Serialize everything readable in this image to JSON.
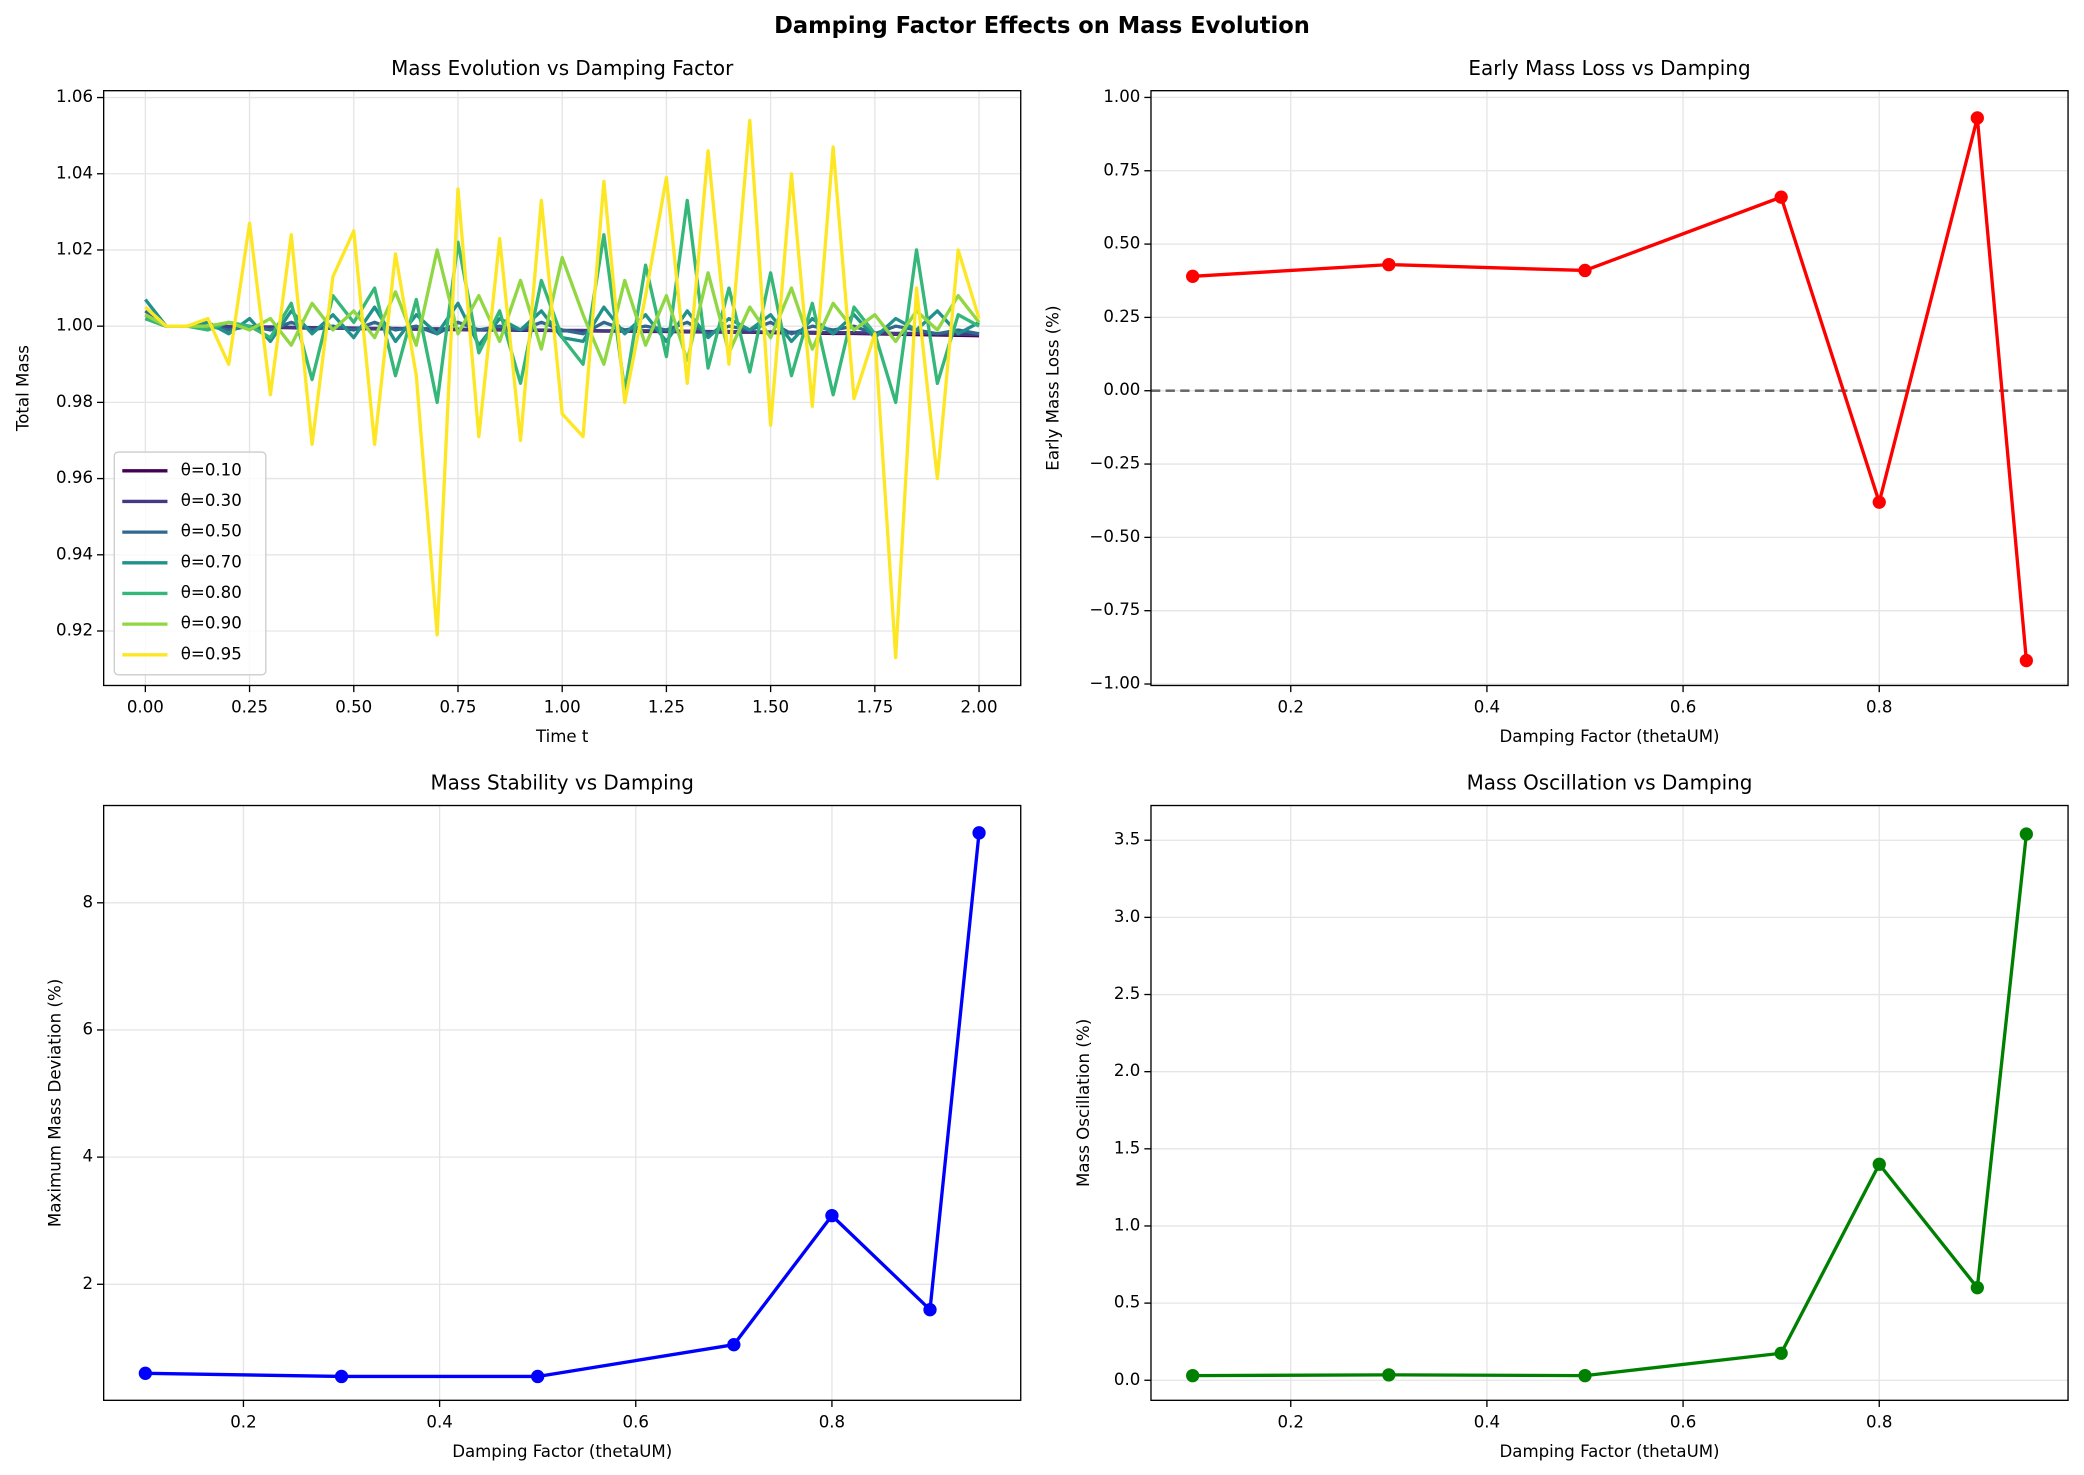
{
  "title": "Damping Factor Effects on Mass Evolution",
  "chart_data": [
    {
      "type": "line",
      "title": "Mass Evolution vs Damping Factor",
      "xlabel": "Time t",
      "ylabel": "Total Mass",
      "grid": true,
      "legend": "lower left",
      "x": [
        0,
        0.05,
        0.1,
        0.15,
        0.2,
        0.25,
        0.3,
        0.35,
        0.4,
        0.45,
        0.5,
        0.55,
        0.6,
        0.65,
        0.7,
        0.75,
        0.8,
        0.85,
        0.9,
        0.95,
        1.0,
        1.05,
        1.1,
        1.15,
        1.2,
        1.25,
        1.3,
        1.35,
        1.4,
        1.45,
        1.5,
        1.55,
        1.6,
        1.65,
        1.7,
        1.75,
        1.8,
        1.85,
        1.9,
        1.95,
        2.0
      ],
      "xlim": [
        -0.1,
        2.1
      ],
      "xticks": [
        {
          "value": 0,
          "label": "0.00"
        },
        {
          "value": 0.25,
          "label": "0.25"
        },
        {
          "value": 0.5,
          "label": "0.50"
        },
        {
          "value": 0.75,
          "label": "0.75"
        },
        {
          "value": 1,
          "label": "1.00"
        },
        {
          "value": 1.25,
          "label": "1.25"
        },
        {
          "value": 1.5,
          "label": "1.50"
        },
        {
          "value": 1.75,
          "label": "1.75"
        },
        {
          "value": 2,
          "label": "2.00"
        }
      ],
      "ylim": [
        0.9057,
        1.0618
      ],
      "yticks": [
        {
          "value": 0.92,
          "label": "0.92"
        },
        {
          "value": 0.94,
          "label": "0.94"
        },
        {
          "value": 0.96,
          "label": "0.96"
        },
        {
          "value": 0.98,
          "label": "0.98"
        },
        {
          "value": 1,
          "label": "1.00"
        },
        {
          "value": 1.02,
          "label": "1.02"
        },
        {
          "value": 1.04,
          "label": "1.04"
        },
        {
          "value": 1.06,
          "label": "1.06"
        }
      ],
      "series": [
        {
          "name": "θ=0.10",
          "color": "#440154",
          "values": [
            1.002,
            1.0,
            1.0,
            0.9999,
            0.9998,
            0.9998,
            0.9997,
            0.9996,
            0.9995,
            0.9995,
            0.9994,
            0.9993,
            0.9993,
            0.9992,
            0.9991,
            0.9991,
            0.999,
            0.999,
            0.9989,
            0.9989,
            0.9988,
            0.9988,
            0.9987,
            0.9987,
            0.9986,
            0.9986,
            0.9985,
            0.9985,
            0.9984,
            0.9984,
            0.9983,
            0.9983,
            0.9982,
            0.9981,
            0.9981,
            0.998,
            0.9979,
            0.9978,
            0.9977,
            0.9976,
            0.9975
          ]
        },
        {
          "name": "θ=0.30",
          "color": "#443983",
          "values": [
            1.003,
            1.0,
            1.0,
            1.0,
            0.9999,
            0.9998,
            0.9998,
            0.9997,
            0.9996,
            0.9996,
            0.9995,
            0.9994,
            0.9994,
            0.9993,
            0.9993,
            0.9992,
            0.9991,
            0.9991,
            0.999,
            0.999,
            0.9989,
            0.9989,
            0.9988,
            0.9988,
            0.9988,
            0.9987,
            0.9987,
            0.9986,
            0.9986,
            0.9985,
            0.9985,
            0.9984,
            0.9984,
            0.9983,
            0.9983,
            0.9982,
            0.9981,
            0.9981,
            0.998,
            0.9979,
            0.9978
          ]
        },
        {
          "name": "θ=0.50",
          "color": "#31688e",
          "values": [
            1.004,
            1.0,
            1.0,
            1.0,
            0.999,
            1.0,
            0.999,
            1.001,
            0.999,
            1.0,
            0.999,
            1.001,
            0.999,
            1.0,
            0.998,
            1.001,
            0.999,
            1.0,
            0.999,
            1.001,
            0.999,
            0.998,
            1.001,
            0.999,
            1.0,
            0.999,
            1.001,
            0.998,
            1.0,
            0.999,
            1.001,
            0.998,
            1.0,
            0.999,
            1.0,
            0.998,
            1.0,
            0.999,
            0.998,
            0.999,
            0.998
          ]
        },
        {
          "name": "θ=0.70",
          "color": "#21918c",
          "values": [
            1.007,
            1.0,
            1.0,
            1.001,
            0.998,
            1.002,
            0.996,
            1.004,
            0.998,
            1.003,
            0.997,
            1.005,
            0.996,
            1.003,
            0.998,
            1.006,
            0.995,
            1.002,
            0.999,
            1.004,
            0.997,
            0.996,
            1.005,
            0.998,
            1.003,
            0.996,
            1.004,
            0.997,
            1.002,
            0.999,
            1.003,
            0.996,
            1.002,
            0.998,
            1.003,
            0.997,
            1.002,
            0.999,
            1.004,
            0.998,
            1.001
          ]
        },
        {
          "name": "θ=0.80",
          "color": "#35b779",
          "values": [
            1.002,
            1.0,
            1.0,
            0.999,
            1.001,
            1.0,
            0.997,
            1.006,
            0.986,
            1.008,
            1.001,
            1.01,
            0.987,
            1.007,
            0.98,
            1.022,
            0.993,
            1.004,
            0.985,
            1.012,
            0.997,
            0.99,
            1.024,
            0.983,
            1.016,
            0.992,
            1.033,
            0.989,
            1.01,
            0.988,
            1.014,
            0.987,
            1.006,
            0.982,
            1.005,
            0.998,
            0.98,
            1.02,
            0.985,
            1.003,
            1.0
          ]
        },
        {
          "name": "θ=0.90",
          "color": "#90d743",
          "values": [
            1.003,
            1.0,
            1.0,
            1.0,
            1.001,
            0.999,
            1.002,
            0.995,
            1.006,
            0.999,
            1.004,
            0.997,
            1.009,
            0.995,
            1.02,
            0.998,
            1.008,
            0.996,
            1.012,
            0.994,
            1.018,
            1.003,
            0.99,
            1.012,
            0.995,
            1.008,
            0.991,
            1.014,
            0.993,
            1.005,
            0.997,
            1.01,
            0.994,
            1.006,
            0.999,
            1.003,
            0.996,
            1.004,
            0.999,
            1.008,
            1.001
          ]
        },
        {
          "name": "θ=0.95",
          "color": "#fde725",
          "values": [
            1.005,
            1.0,
            1.0,
            1.002,
            0.99,
            1.027,
            0.982,
            1.024,
            0.969,
            1.013,
            1.025,
            0.969,
            1.019,
            0.987,
            0.919,
            1.036,
            0.971,
            1.023,
            0.97,
            1.033,
            0.977,
            0.971,
            1.038,
            0.98,
            1.008,
            1.039,
            0.985,
            1.046,
            0.99,
            1.054,
            0.974,
            1.04,
            0.979,
            1.047,
            0.981,
            0.998,
            0.913,
            1.01,
            0.96,
            1.02,
            1.002
          ]
        }
      ]
    },
    {
      "type": "line",
      "title": "Early Mass Loss vs Damping",
      "xlabel": "Damping Factor (thetaUM)",
      "ylabel": "Early Mass Loss (%)",
      "grid": true,
      "color": "#ff0000",
      "markers": true,
      "hline": 0,
      "x": [
        0.1,
        0.3,
        0.5,
        0.7,
        0.8,
        0.9,
        0.95
      ],
      "values": [
        0.39,
        0.43,
        0.41,
        0.66,
        -0.38,
        0.93,
        -0.92
      ],
      "xlim": [
        0.0575,
        0.9925
      ],
      "xticks": [
        0.2,
        0.4,
        0.6,
        0.8
      ],
      "ylim": [
        -1.005,
        1.023
      ],
      "yticks": [
        {
          "value": -1,
          "label": "−1.00"
        },
        {
          "value": -0.75,
          "label": "−0.75"
        },
        {
          "value": -0.5,
          "label": "−0.50"
        },
        {
          "value": -0.25,
          "label": "−0.25"
        },
        {
          "value": 0,
          "label": "0.00"
        },
        {
          "value": 0.25,
          "label": "0.25"
        },
        {
          "value": 0.5,
          "label": "0.50"
        },
        {
          "value": 0.75,
          "label": "0.75"
        },
        {
          "value": 1,
          "label": "1.00"
        }
      ]
    },
    {
      "type": "line",
      "title": "Mass Stability vs Damping",
      "xlabel": "Damping Factor (thetaUM)",
      "ylabel": "Maximum Mass Deviation (%)",
      "grid": true,
      "color": "#0000ff",
      "markers": true,
      "x": [
        0.1,
        0.3,
        0.5,
        0.7,
        0.8,
        0.9,
        0.95
      ],
      "values": [
        0.6,
        0.55,
        0.55,
        1.05,
        3.08,
        1.6,
        9.1
      ],
      "xlim": [
        0.0575,
        0.9925
      ],
      "xticks": [
        0.2,
        0.4,
        0.6,
        0.8
      ],
      "ylim": [
        0.175,
        9.53
      ],
      "yticks": [
        2,
        4,
        6,
        8
      ]
    },
    {
      "type": "line",
      "title": "Mass Oscillation vs Damping",
      "xlabel": "Damping Factor (thetaUM)",
      "ylabel": "Mass Oscillation (%)",
      "grid": true,
      "color": "#008000",
      "markers": true,
      "x": [
        0.1,
        0.3,
        0.5,
        0.7,
        0.8,
        0.9,
        0.95
      ],
      "values": [
        0.03,
        0.035,
        0.03,
        0.175,
        1.4,
        0.6,
        3.54
      ],
      "xlim": [
        0.0575,
        0.9925
      ],
      "xticks": [
        0.2,
        0.4,
        0.6,
        0.8
      ],
      "ylim": [
        -0.13,
        3.725
      ],
      "yticks": [
        {
          "value": 0,
          "label": "0.0"
        },
        {
          "value": 0.5,
          "label": "0.5"
        },
        {
          "value": 1,
          "label": "1.0"
        },
        {
          "value": 1.5,
          "label": "1.5"
        },
        {
          "value": 2,
          "label": "2.0"
        },
        {
          "value": 2.5,
          "label": "2.5"
        },
        {
          "value": 3,
          "label": "3.0"
        },
        {
          "value": 3.5,
          "label": "3.5"
        }
      ]
    }
  ]
}
